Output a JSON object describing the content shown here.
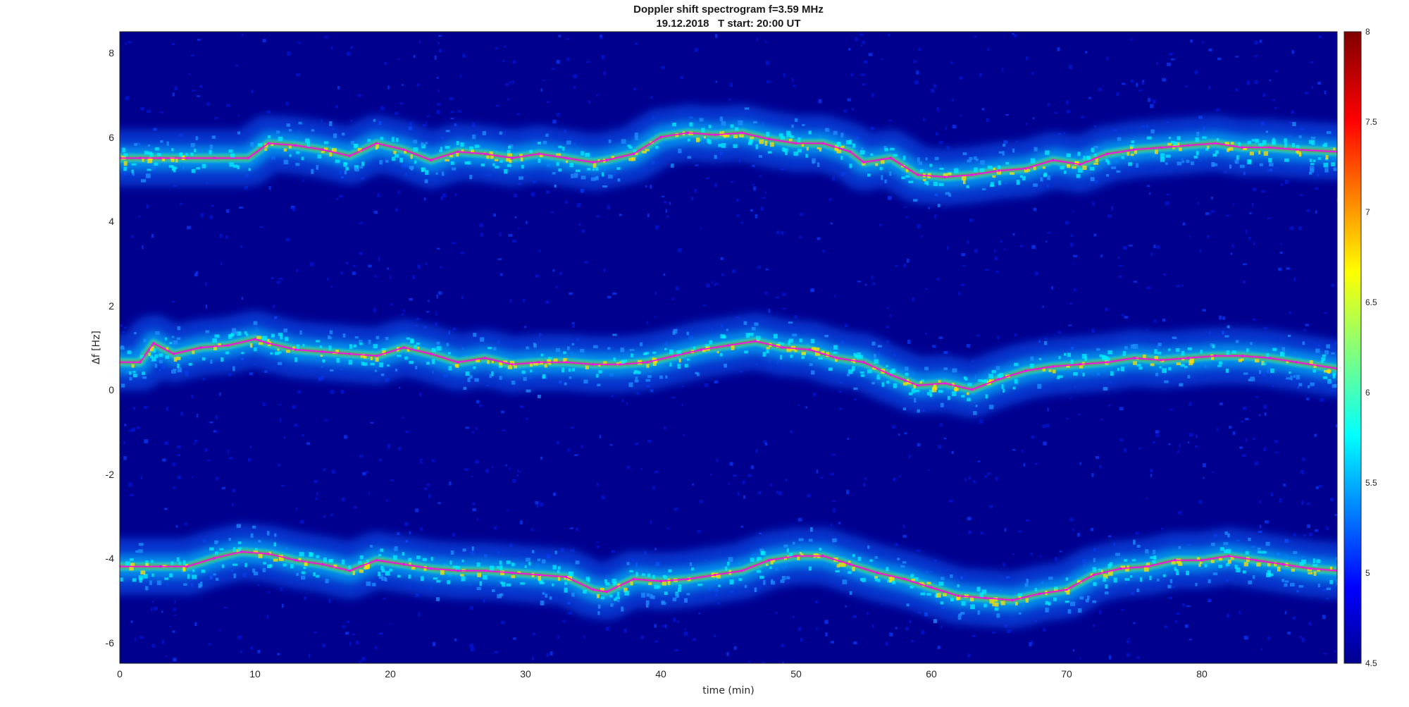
{
  "chart_data": {
    "type": "heatmap",
    "title": "Doppler shift spectrogram f=3.59 MHz",
    "subtitle": "19.12.2018   T start: 20:00 UT",
    "xlabel": "time (min)",
    "ylabel": "Δf [Hz]",
    "xlim": [
      0,
      90
    ],
    "ylim": [
      -6.5,
      8.5
    ],
    "xticks": [
      "0",
      "10",
      "20",
      "30",
      "40",
      "50",
      "60",
      "70",
      "80"
    ],
    "yticks": [
      "8",
      "6",
      "4",
      "2",
      "0",
      "-2",
      "-4",
      "-6"
    ],
    "colorbar": {
      "range": [
        4.5,
        8
      ],
      "ticks": [
        "8",
        "7.5",
        "7",
        "6.5",
        "6",
        "5.5",
        "5",
        "4.5"
      ],
      "colormap": "jet"
    },
    "background_color": "#00008f",
    "series": [
      {
        "trace_color": "#ff00ff",
        "x": [
          0,
          1.5,
          3,
          5,
          7,
          9.5,
          11,
          13,
          15,
          17,
          19,
          21,
          23,
          25,
          27,
          29,
          31,
          33,
          35,
          36,
          38,
          40,
          42,
          44,
          46,
          48,
          50,
          52,
          54,
          55,
          57,
          59,
          61,
          63,
          65,
          67,
          69,
          71,
          73,
          75,
          77,
          79,
          81,
          83,
          85,
          87,
          90
        ],
        "y": [
          5.5,
          5.5,
          5.5,
          5.5,
          5.5,
          5.5,
          5.85,
          5.8,
          5.7,
          5.55,
          5.85,
          5.7,
          5.45,
          5.65,
          5.6,
          5.5,
          5.6,
          5.5,
          5.4,
          5.45,
          5.6,
          6.0,
          6.1,
          6.05,
          6.1,
          5.95,
          5.85,
          5.85,
          5.65,
          5.4,
          5.5,
          5.1,
          5.05,
          5.1,
          5.2,
          5.25,
          5.45,
          5.35,
          5.6,
          5.7,
          5.75,
          5.8,
          5.85,
          5.75,
          5.75,
          5.7,
          5.65
        ]
      },
      {
        "trace_color": "#ff00ff",
        "x": [
          0,
          1.5,
          2.5,
          4,
          6,
          8,
          10,
          11,
          13,
          15,
          17,
          19,
          21,
          23,
          25,
          27,
          29,
          31,
          33,
          35,
          37,
          39,
          41,
          43,
          45,
          47,
          49,
          51,
          53,
          55,
          57,
          59,
          61,
          63,
          65,
          67,
          69,
          71,
          73,
          75,
          77,
          79,
          81,
          83,
          85,
          87,
          90
        ],
        "y": [
          0.65,
          0.65,
          1.1,
          0.85,
          1.0,
          1.05,
          1.2,
          1.1,
          0.95,
          0.9,
          0.85,
          0.8,
          1.0,
          0.85,
          0.65,
          0.75,
          0.6,
          0.65,
          0.65,
          0.6,
          0.6,
          0.65,
          0.8,
          0.95,
          1.05,
          1.15,
          1.0,
          0.95,
          0.75,
          0.65,
          0.35,
          0.1,
          0.15,
          0.0,
          0.25,
          0.45,
          0.55,
          0.6,
          0.65,
          0.75,
          0.7,
          0.75,
          0.8,
          0.8,
          0.75,
          0.65,
          0.5
        ]
      },
      {
        "trace_color": "#ff00ff",
        "x": [
          0,
          3,
          5,
          7,
          9,
          11,
          13,
          15,
          17,
          19,
          21,
          23,
          25,
          27,
          29,
          31,
          33,
          35,
          36,
          38,
          40,
          42,
          44,
          46,
          48,
          50,
          52,
          54,
          56,
          58,
          60,
          62,
          64,
          66,
          68,
          70,
          72,
          74,
          76,
          78,
          80,
          82,
          84,
          86,
          88,
          90
        ],
        "y": [
          -4.2,
          -4.2,
          -4.2,
          -4.0,
          -3.85,
          -3.9,
          -4.05,
          -4.15,
          -4.3,
          -4.05,
          -4.15,
          -4.25,
          -4.3,
          -4.3,
          -4.35,
          -4.4,
          -4.45,
          -4.75,
          -4.8,
          -4.5,
          -4.55,
          -4.5,
          -4.4,
          -4.3,
          -4.05,
          -3.95,
          -3.95,
          -4.15,
          -4.35,
          -4.5,
          -4.7,
          -4.9,
          -4.95,
          -5.0,
          -4.85,
          -4.75,
          -4.4,
          -4.25,
          -4.2,
          -4.05,
          -4.05,
          -3.95,
          -4.05,
          -4.15,
          -4.25,
          -4.3
        ]
      }
    ]
  }
}
